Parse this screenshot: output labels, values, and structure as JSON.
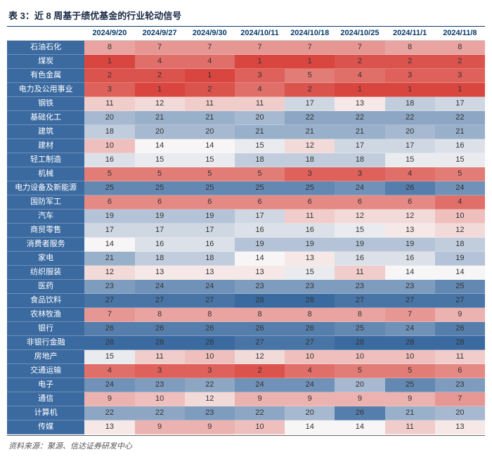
{
  "title": "表 3：近 8 周基于绩优基金的行业轮动信号",
  "source": "资料来源：聚源、信达证券研发中心",
  "heatmap": {
    "type": "heatmap",
    "columns": [
      "2024/9/20",
      "2024/9/27",
      "2024/9/30",
      "2024/10/11",
      "2024/10/18",
      "2024/10/25",
      "2024/11/1",
      "2024/11/8"
    ],
    "row_labels": [
      "石油石化",
      "煤炭",
      "有色金属",
      "电力及公用事业",
      "钢铁",
      "基础化工",
      "建筑",
      "建材",
      "轻工制造",
      "机械",
      "电力设备及新能源",
      "国防军工",
      "汽车",
      "商贸零售",
      "消费者服务",
      "家电",
      "纺织服装",
      "医药",
      "食品饮料",
      "农林牧渔",
      "银行",
      "非银行金融",
      "房地产",
      "交通运输",
      "电子",
      "通信",
      "计算机",
      "传媒"
    ],
    "values": [
      [
        8,
        7,
        7,
        7,
        7,
        7,
        8,
        8
      ],
      [
        1,
        4,
        4,
        1,
        1,
        2,
        2,
        2
      ],
      [
        2,
        2,
        1,
        3,
        5,
        4,
        3,
        3
      ],
      [
        3,
        1,
        2,
        4,
        2,
        1,
        1,
        1
      ],
      [
        11,
        12,
        11,
        11,
        17,
        13,
        18,
        17
      ],
      [
        20,
        21,
        21,
        20,
        22,
        22,
        22,
        22
      ],
      [
        18,
        20,
        20,
        21,
        21,
        21,
        20,
        21
      ],
      [
        10,
        14,
        14,
        15,
        12,
        17,
        17,
        16
      ],
      [
        16,
        15,
        15,
        18,
        18,
        18,
        15,
        15
      ],
      [
        5,
        5,
        5,
        5,
        3,
        3,
        4,
        5
      ],
      [
        25,
        25,
        25,
        25,
        25,
        24,
        26,
        24
      ],
      [
        6,
        6,
        6,
        6,
        6,
        6,
        6,
        4
      ],
      [
        19,
        19,
        19,
        17,
        11,
        12,
        12,
        10
      ],
      [
        17,
        17,
        17,
        16,
        16,
        15,
        13,
        12
      ],
      [
        14,
        16,
        16,
        19,
        19,
        19,
        19,
        18
      ],
      [
        21,
        18,
        18,
        14,
        13,
        16,
        16,
        19
      ],
      [
        12,
        13,
        13,
        13,
        15,
        11,
        14,
        14
      ],
      [
        23,
        24,
        24,
        23,
        23,
        23,
        23,
        25
      ],
      [
        27,
        27,
        27,
        28,
        28,
        27,
        27,
        27
      ],
      [
        7,
        8,
        8,
        8,
        8,
        8,
        7,
        9
      ],
      [
        26,
        26,
        26,
        26,
        26,
        25,
        24,
        26
      ],
      [
        28,
        28,
        28,
        27,
        27,
        28,
        28,
        28
      ],
      [
        15,
        11,
        10,
        12,
        10,
        10,
        10,
        11
      ],
      [
        4,
        3,
        3,
        2,
        4,
        5,
        5,
        6
      ],
      [
        24,
        23,
        22,
        24,
        24,
        20,
        25,
        23
      ],
      [
        9,
        10,
        12,
        9,
        9,
        9,
        9,
        7
      ],
      [
        22,
        22,
        23,
        22,
        20,
        26,
        21,
        20
      ],
      [
        13,
        9,
        9,
        10,
        14,
        14,
        11,
        13
      ]
    ],
    "value_min": 1,
    "value_max": 28,
    "color_low": "#d9463f",
    "color_mid": "#f7f5f5",
    "color_high": "#3b6aa0",
    "mid_value": 14,
    "row_label_bg": "#3b6aa0",
    "row_label_color": "#ffffff",
    "header_color": "#0a3a6a",
    "cell_text_color": "#333333",
    "font_size_cell": 11,
    "font_size_title": 13,
    "title_color": "#1a2a44",
    "border_color_top": "#0a3a6a"
  }
}
